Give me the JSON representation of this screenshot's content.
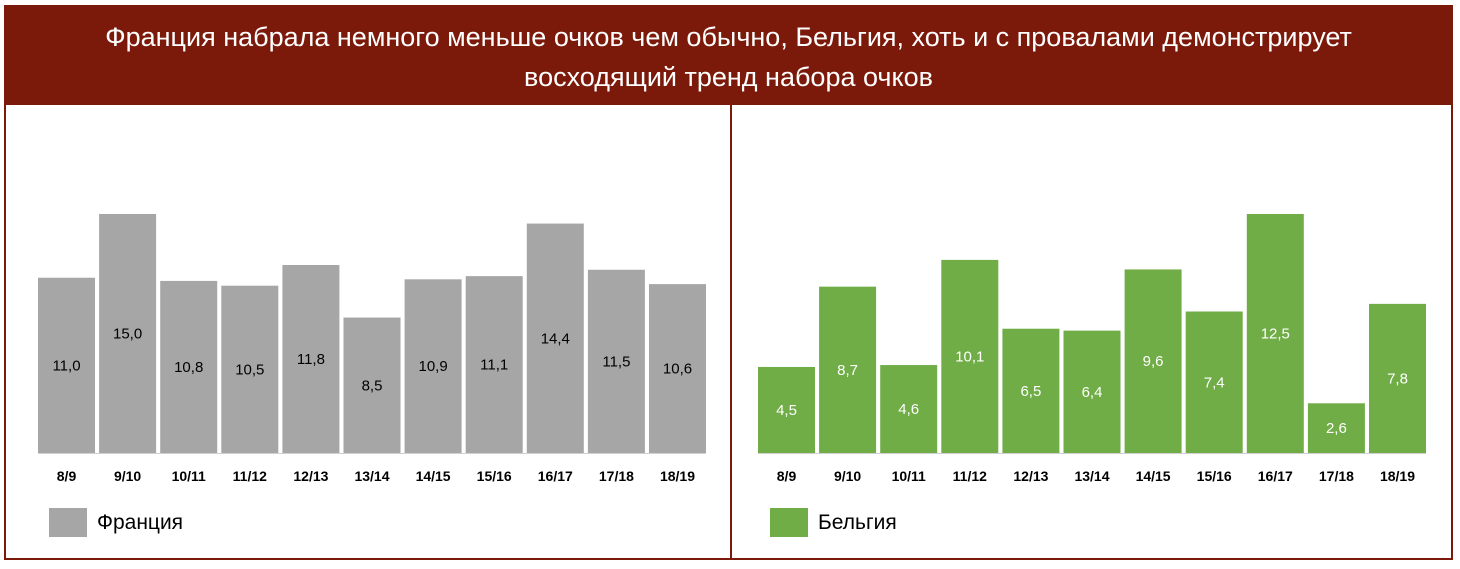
{
  "header": {
    "title": "Франция набрала немного меньше очков чем обычно, Бельгия, хоть и с провалами демонстрирует восходящий тренд набора очков"
  },
  "chart_data": [
    {
      "type": "bar",
      "categories": [
        "8/9",
        "9/10",
        "10/11",
        "11/12",
        "12/13",
        "13/14",
        "14/15",
        "15/16",
        "16/17",
        "17/18",
        "18/19"
      ],
      "series": [
        {
          "name": "Франция",
          "values": [
            11.0,
            15.0,
            10.8,
            10.5,
            11.8,
            8.5,
            10.9,
            11.1,
            14.4,
            11.5,
            10.6
          ],
          "labels": [
            "11,0",
            "15,0",
            "10,8",
            "10,5",
            "11,8",
            "8,5",
            "10,9",
            "11,1",
            "14,4",
            "11,5",
            "10,6"
          ],
          "color": "#a6a6a6",
          "label_color": "#000000"
        }
      ],
      "ylim": [
        0,
        15.0
      ],
      "grid": false,
      "legend_position": "bottom-left"
    },
    {
      "type": "bar",
      "categories": [
        "8/9",
        "9/10",
        "10/11",
        "11/12",
        "12/13",
        "13/14",
        "14/15",
        "15/16",
        "16/17",
        "17/18",
        "18/19"
      ],
      "series": [
        {
          "name": "Бельгия",
          "values": [
            4.5,
            8.7,
            4.6,
            10.1,
            6.5,
            6.4,
            9.6,
            7.4,
            12.5,
            2.6,
            7.8
          ],
          "labels": [
            "4,5",
            "8,7",
            "4,6",
            "10,1",
            "6,5",
            "6,4",
            "9,6",
            "7,4",
            "12,5",
            "2,6",
            "7,8"
          ],
          "color": "#70ad47",
          "label_color": "#ffffff"
        }
      ],
      "ylim": [
        0,
        12.5
      ],
      "grid": false,
      "legend_position": "bottom-left"
    }
  ]
}
